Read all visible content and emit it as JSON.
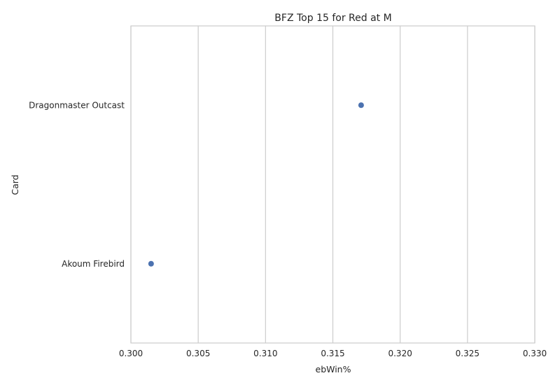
{
  "chart_data": {
    "type": "scatter",
    "title": "BFZ Top 15 for Red at M",
    "xlabel": "ebWin%",
    "ylabel": "Card",
    "categories": [
      "Dragonmaster Outcast",
      "Akoum Firebird"
    ],
    "values": [
      0.3171,
      0.3015
    ],
    "xlim": [
      0.3,
      0.33
    ],
    "xticks": [
      "0.300",
      "0.305",
      "0.310",
      "0.315",
      "0.320",
      "0.325",
      "0.330"
    ],
    "grid": "vertical",
    "color": "#4c72b0"
  }
}
